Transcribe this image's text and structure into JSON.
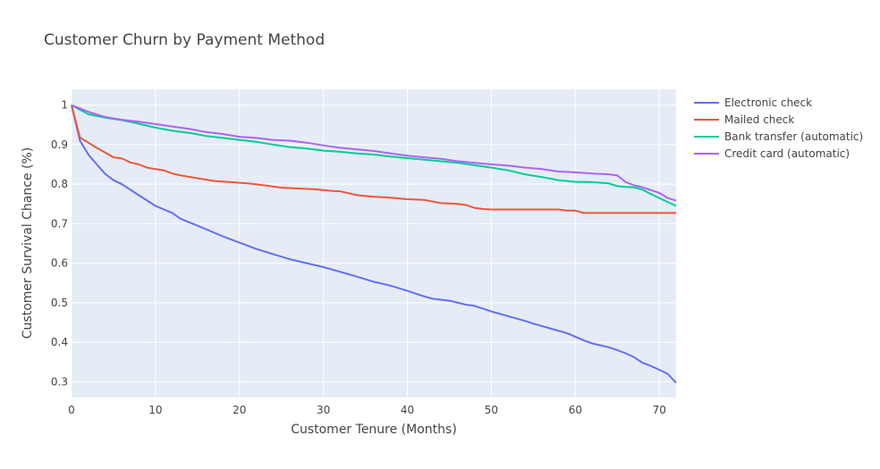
{
  "chart_data": {
    "type": "line",
    "title": "Customer Churn by Payment Method",
    "xlabel": "Customer Tenure (Months)",
    "ylabel": "Customer Survival Chance (%)",
    "xlim": [
      0,
      72
    ],
    "ylim": [
      0.26,
      1.04
    ],
    "xticks": [
      0,
      10,
      20,
      30,
      40,
      50,
      60,
      70
    ],
    "yticks": [
      0.3,
      0.4,
      0.5,
      0.6,
      0.7,
      0.8,
      0.9,
      1
    ],
    "grid": true,
    "legend_position": "top-right",
    "series": [
      {
        "name": "Electronic check",
        "color": "#636efa",
        "x": [
          0,
          1,
          2,
          3,
          4,
          5,
          6,
          8,
          10,
          12,
          13,
          15,
          18,
          20,
          22,
          24,
          26,
          28,
          30,
          32,
          34,
          36,
          38,
          40,
          42,
          43,
          45,
          47,
          48,
          50,
          52,
          54,
          55,
          57,
          59,
          61,
          62,
          64,
          65,
          66,
          67,
          68,
          69,
          70,
          71,
          72
        ],
        "y": [
          1.0,
          0.91,
          0.875,
          0.85,
          0.826,
          0.81,
          0.8,
          0.772,
          0.745,
          0.727,
          0.712,
          0.695,
          0.668,
          0.652,
          0.636,
          0.623,
          0.61,
          0.6,
          0.59,
          0.578,
          0.566,
          0.553,
          0.543,
          0.53,
          0.516,
          0.51,
          0.505,
          0.495,
          0.492,
          0.478,
          0.466,
          0.454,
          0.447,
          0.435,
          0.423,
          0.405,
          0.397,
          0.387,
          0.38,
          0.372,
          0.362,
          0.348,
          0.34,
          0.33,
          0.32,
          0.297
        ]
      },
      {
        "name": "Mailed check",
        "color": "#ef553b",
        "x": [
          0,
          1,
          2,
          3,
          4,
          5,
          6,
          7,
          8,
          9,
          10,
          11,
          12,
          13,
          15,
          17,
          19,
          21,
          23,
          25,
          27,
          29,
          31,
          32,
          33,
          34,
          35,
          36,
          38,
          40,
          42,
          44,
          46,
          47,
          48,
          49,
          50,
          52,
          55,
          58,
          59,
          60,
          61,
          63,
          65,
          67,
          69,
          72
        ],
        "y": [
          1.0,
          0.918,
          0.905,
          0.892,
          0.88,
          0.868,
          0.865,
          0.855,
          0.85,
          0.842,
          0.838,
          0.835,
          0.827,
          0.822,
          0.815,
          0.808,
          0.805,
          0.802,
          0.797,
          0.791,
          0.789,
          0.787,
          0.783,
          0.782,
          0.777,
          0.772,
          0.77,
          0.768,
          0.766,
          0.762,
          0.76,
          0.752,
          0.75,
          0.747,
          0.74,
          0.737,
          0.736,
          0.736,
          0.736,
          0.736,
          0.733,
          0.733,
          0.727,
          0.727,
          0.727,
          0.727,
          0.727,
          0.727
        ]
      },
      {
        "name": "Bank transfer (automatic)",
        "color": "#00cc96",
        "x": [
          0,
          2,
          4,
          6,
          8,
          10,
          12,
          14,
          16,
          18,
          20,
          22,
          24,
          26,
          28,
          30,
          32,
          34,
          36,
          38,
          40,
          42,
          44,
          46,
          48,
          50,
          52,
          54,
          56,
          58,
          60,
          62,
          64,
          65,
          66,
          67,
          68,
          69,
          70,
          71,
          72
        ],
        "y": [
          1.0,
          0.977,
          0.968,
          0.962,
          0.953,
          0.943,
          0.935,
          0.93,
          0.922,
          0.917,
          0.912,
          0.907,
          0.9,
          0.894,
          0.89,
          0.885,
          0.882,
          0.878,
          0.875,
          0.87,
          0.866,
          0.862,
          0.858,
          0.854,
          0.848,
          0.842,
          0.835,
          0.825,
          0.818,
          0.81,
          0.806,
          0.805,
          0.802,
          0.795,
          0.793,
          0.792,
          0.786,
          0.775,
          0.765,
          0.755,
          0.745
        ]
      },
      {
        "name": "Credit card (automatic)",
        "color": "#ab63fa",
        "x": [
          0,
          2,
          4,
          6,
          8,
          10,
          12,
          14,
          16,
          18,
          20,
          22,
          24,
          26,
          28,
          30,
          32,
          34,
          36,
          38,
          40,
          42,
          44,
          46,
          48,
          50,
          52,
          54,
          56,
          58,
          60,
          62,
          64,
          65,
          66,
          67,
          68,
          69,
          70,
          71,
          72
        ],
        "y": [
          1.0,
          0.983,
          0.97,
          0.963,
          0.958,
          0.952,
          0.946,
          0.94,
          0.932,
          0.927,
          0.92,
          0.917,
          0.912,
          0.91,
          0.905,
          0.898,
          0.892,
          0.888,
          0.884,
          0.878,
          0.872,
          0.868,
          0.864,
          0.858,
          0.854,
          0.85,
          0.847,
          0.842,
          0.838,
          0.832,
          0.83,
          0.827,
          0.825,
          0.822,
          0.805,
          0.797,
          0.792,
          0.785,
          0.778,
          0.765,
          0.758
        ]
      }
    ]
  }
}
